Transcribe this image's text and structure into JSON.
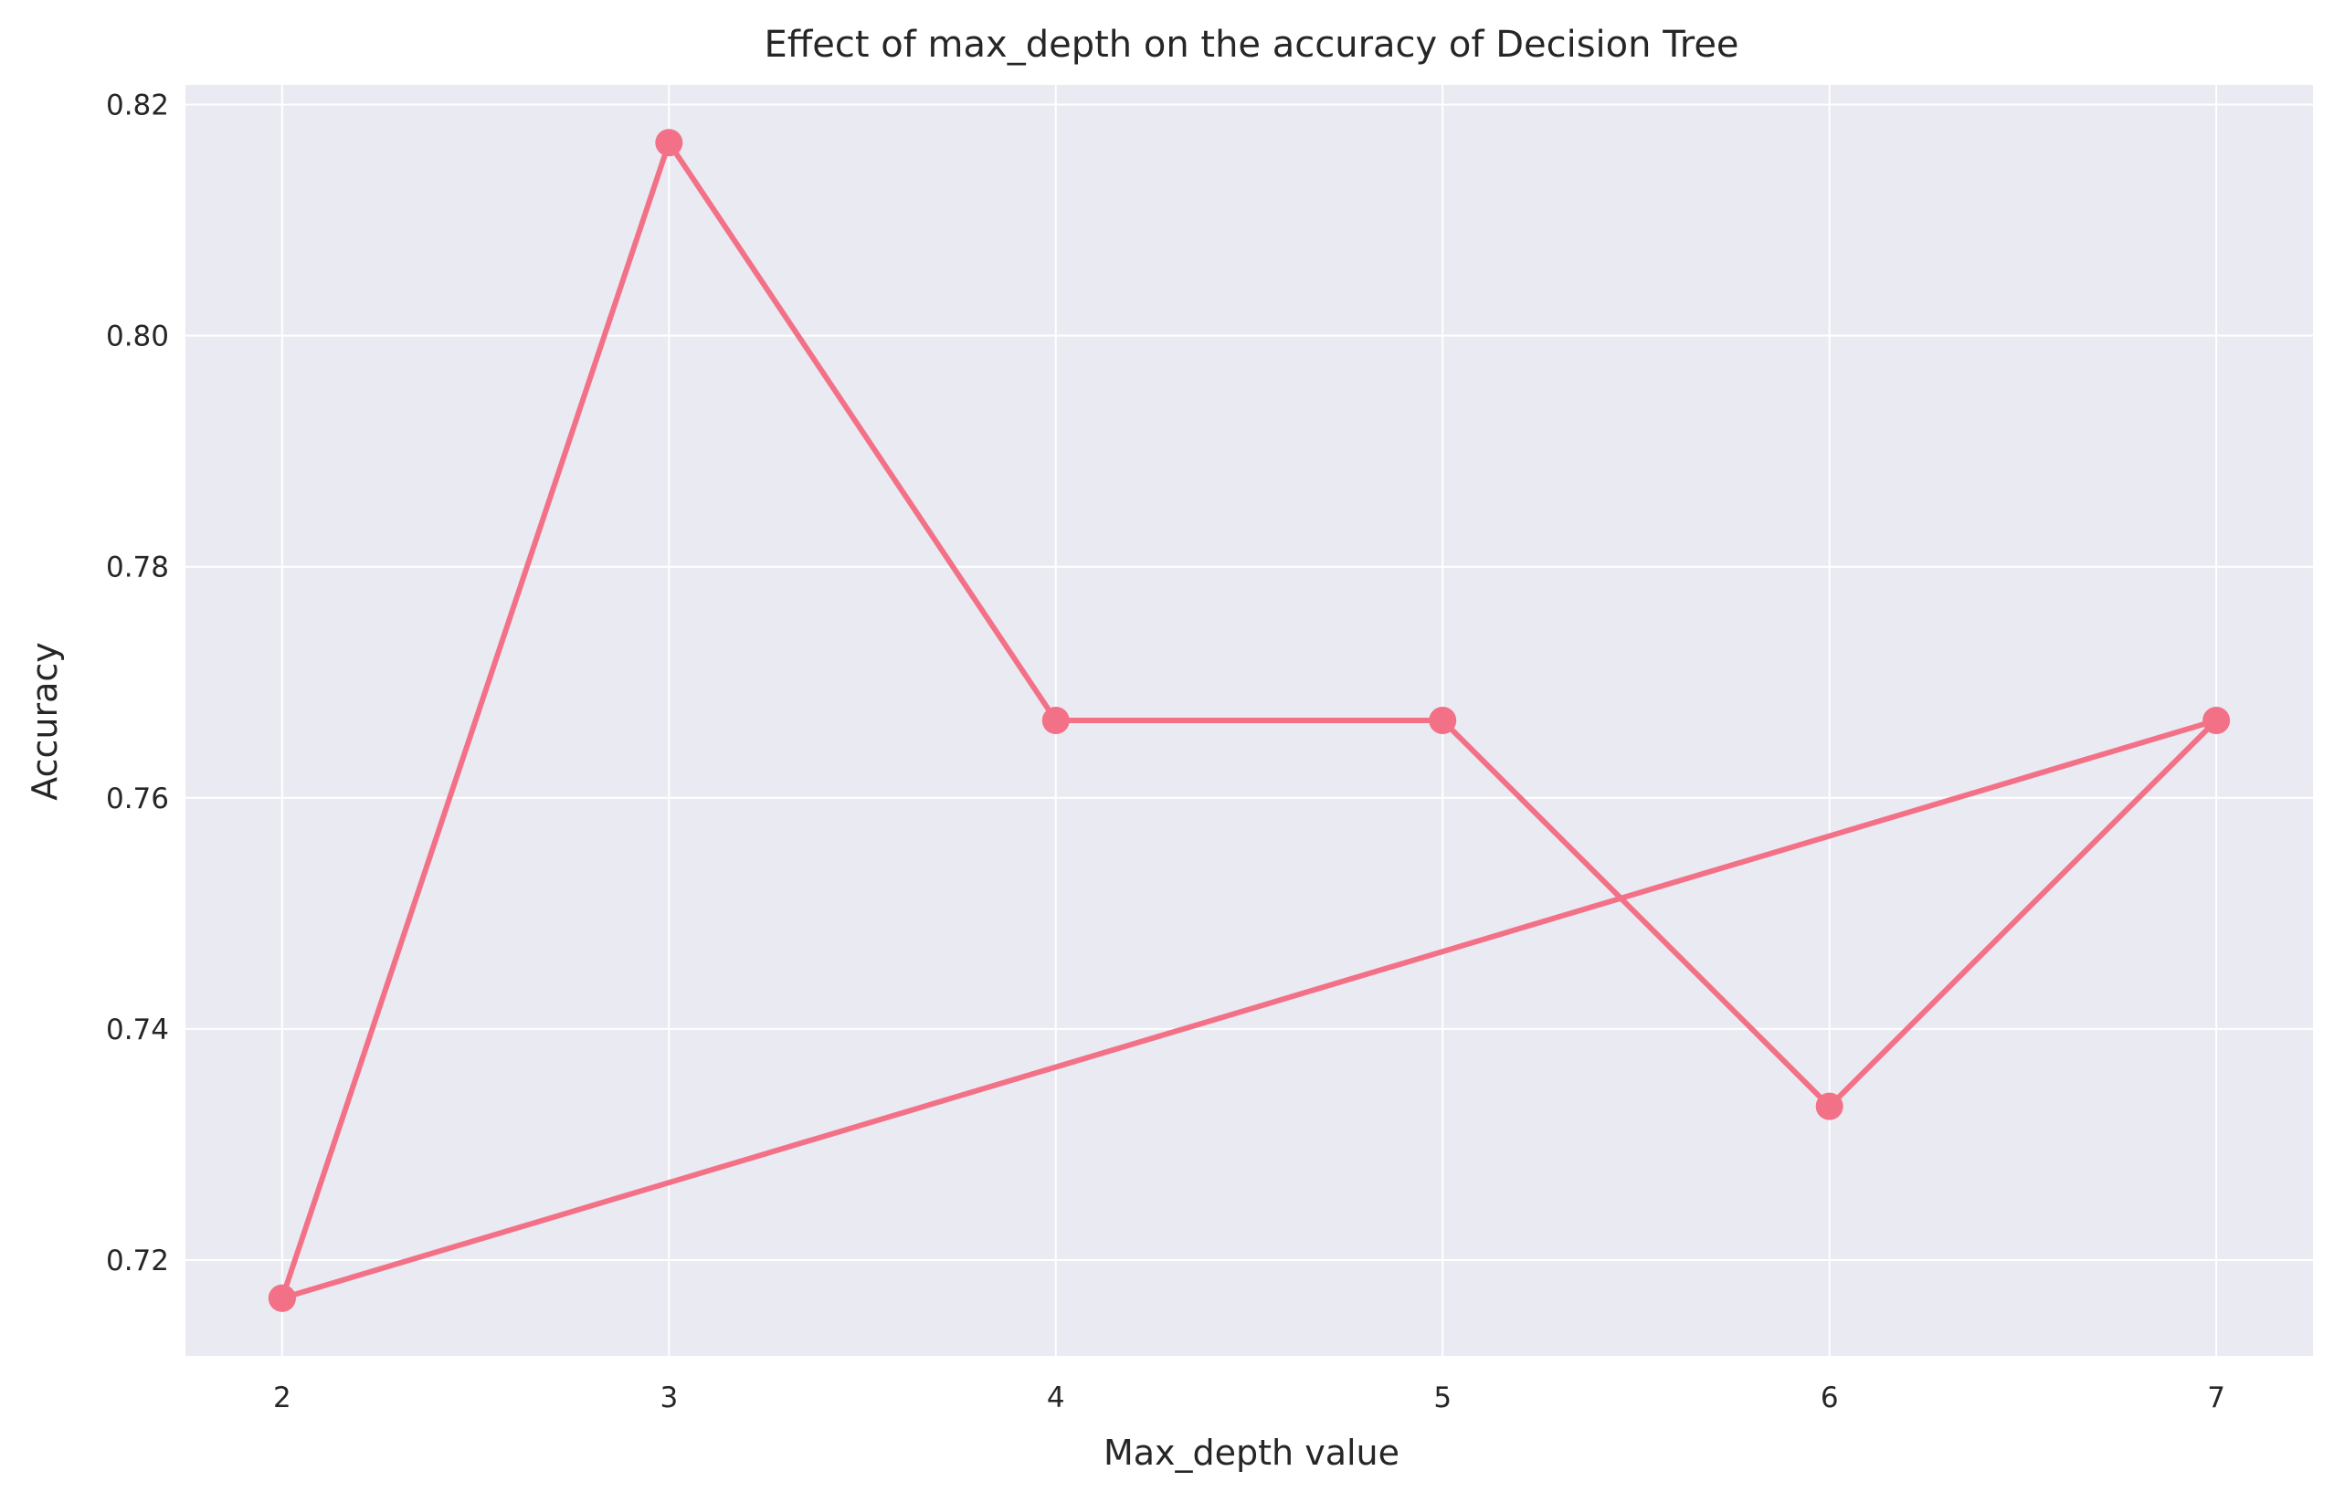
{
  "chart_data": {
    "type": "line",
    "title": "Effect of max_depth on the accuracy of Decision Tree",
    "xlabel": "Max_depth value",
    "ylabel": "Accuracy",
    "xlim": [
      1.75,
      7.25
    ],
    "ylim": [
      0.7117,
      0.8217
    ],
    "xticks": [
      2,
      3,
      4,
      5,
      6,
      7
    ],
    "yticks": [
      0.72,
      0.74,
      0.76,
      0.78,
      0.8,
      0.82
    ],
    "xtick_labels": [
      "2",
      "3",
      "4",
      "5",
      "6",
      "7"
    ],
    "ytick_labels": [
      "0.72",
      "0.74",
      "0.76",
      "0.78",
      "0.80",
      "0.82"
    ],
    "grid": true,
    "legend": "none",
    "series": [
      {
        "x": [
          2,
          3,
          4,
          5,
          6,
          7,
          2
        ],
        "y": [
          0.7167,
          0.8167,
          0.7667,
          0.7667,
          0.7333,
          0.7667,
          0.7167
        ],
        "color": "#f37187",
        "marker": "circle"
      }
    ],
    "colors": {
      "plot_background": "#eaeaf2",
      "grid": "#ffffff",
      "text": "#262626"
    }
  }
}
